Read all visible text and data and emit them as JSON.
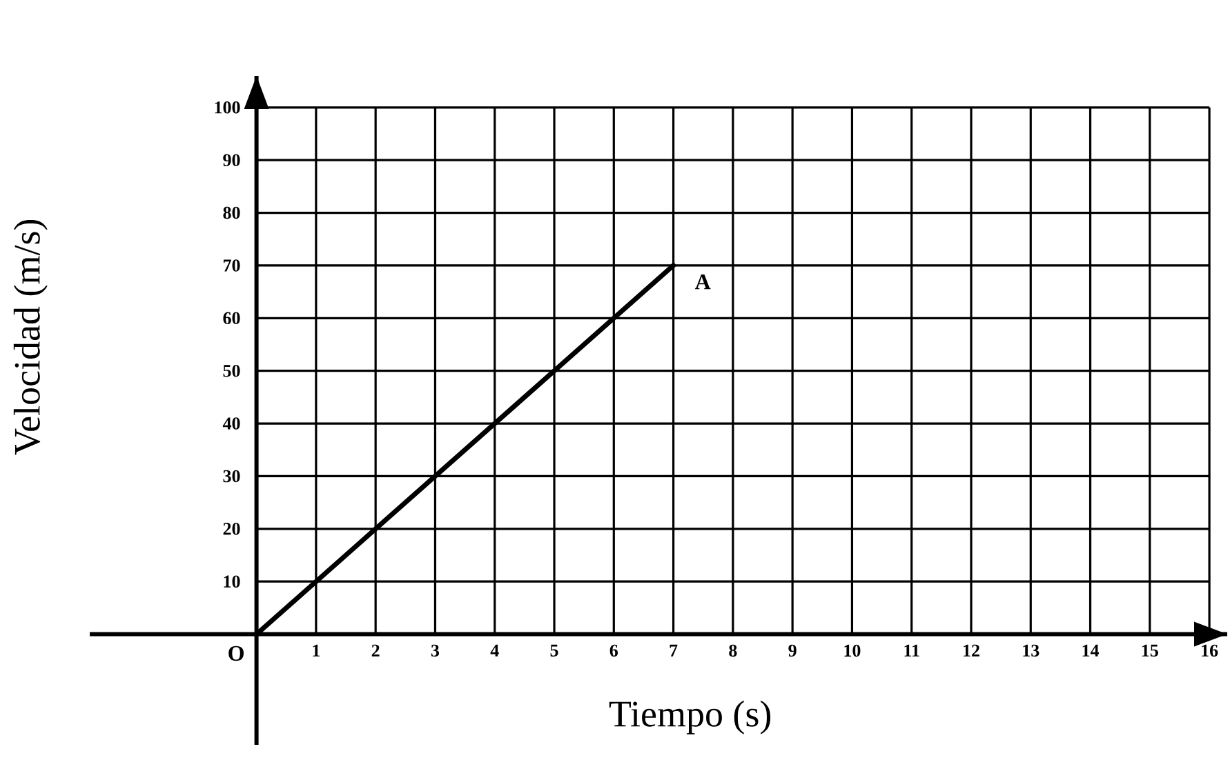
{
  "chart_data": {
    "type": "line",
    "xlabel": "Tiempo (s)",
    "ylabel": "Velocidad (m/s)",
    "x": [
      0,
      7
    ],
    "values": [
      0,
      70
    ],
    "color": "#000000",
    "xlim": [
      -2.8,
      16.3
    ],
    "ylim": [
      -21,
      106
    ],
    "xticks": [
      1,
      2,
      3,
      4,
      5,
      6,
      7,
      8,
      9,
      10,
      11,
      12,
      13,
      14,
      15,
      16
    ],
    "yticks": [
      10,
      20,
      30,
      40,
      50,
      60,
      70,
      80,
      90,
      100
    ],
    "grid": true,
    "annotations": [
      {
        "text": "O",
        "x": 0,
        "y": 0
      },
      {
        "text": "A",
        "x": 7,
        "y": 70
      }
    ]
  }
}
